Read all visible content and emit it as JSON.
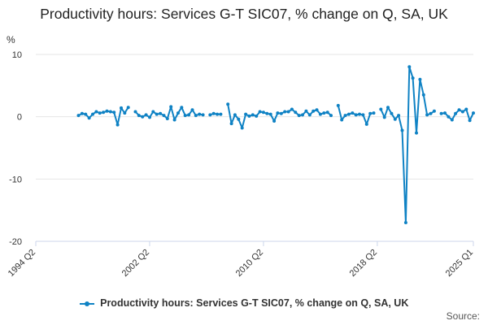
{
  "title": "Productivity hours: Services G-T SIC07, % change on Q, SA, UK",
  "y_unit": "%",
  "legend_label": "Productivity hours: Services G-T SIC07, % change on Q, SA, UK",
  "source_label": "Source:",
  "colors": {
    "series": "#0f82c4",
    "grid": "#e6e6e6",
    "axis": "#ccd6eb",
    "text": "#333333"
  },
  "chart_data": {
    "type": "line",
    "title": "Productivity hours: Services G-T SIC07, % change on Q, SA, UK",
    "ylabel": "%",
    "xlabel": "",
    "ylim": [
      -20,
      10
    ],
    "yticks": [
      10,
      0,
      -10,
      -20
    ],
    "xlim": [
      "1994 Q2",
      "2025 Q1"
    ],
    "xticks": [
      "1994 Q2",
      "2002 Q2",
      "2010 Q2",
      "2018 Q2",
      "2025 Q1"
    ],
    "grid": true,
    "legend": "bottom",
    "series": [
      {
        "name": "Productivity hours: Services G-T SIC07, % change on Q, SA, UK",
        "x_start": "1997 Q2",
        "x_step": "quarter",
        "values": [
          0.2,
          0.5,
          0.4,
          -0.2,
          0.4,
          0.8,
          0.6,
          0.7,
          0.9,
          0.8,
          0.7,
          -1.3,
          1.4,
          0.6,
          1.5,
          null,
          0.8,
          0.2,
          0.0,
          0.3,
          -0.1,
          0.8,
          0.4,
          0.5,
          0.2,
          -0.3,
          1.6,
          -0.5,
          0.6,
          1.5,
          0.2,
          0.3,
          1.1,
          0.2,
          0.4,
          0.3,
          null,
          0.3,
          0.5,
          0.4,
          0.4,
          null,
          2.0,
          -1.1,
          0.3,
          -0.4,
          -1.8,
          0.4,
          0.1,
          0.3,
          0.1,
          0.8,
          0.7,
          0.5,
          0.4,
          -0.7,
          0.6,
          0.5,
          0.8,
          0.8,
          1.2,
          0.7,
          0.2,
          0.3,
          0.9,
          0.3,
          0.9,
          1.1,
          0.4,
          0.6,
          0.7,
          0.2,
          null,
          1.8,
          -0.5,
          0.2,
          0.4,
          0.6,
          0.3,
          0.4,
          0.3,
          -1.2,
          0.5,
          0.6,
          null,
          1.2,
          -0.1,
          1.5,
          0.5,
          -0.4,
          0.2,
          -2.2,
          -17.0,
          8.0,
          6.2,
          -2.6,
          6.0,
          3.5,
          0.3,
          0.5,
          0.9,
          null,
          0.5,
          0.6,
          0.0,
          -0.5,
          0.5,
          1.1,
          0.8,
          1.2,
          -0.6,
          0.6
        ]
      }
    ]
  }
}
